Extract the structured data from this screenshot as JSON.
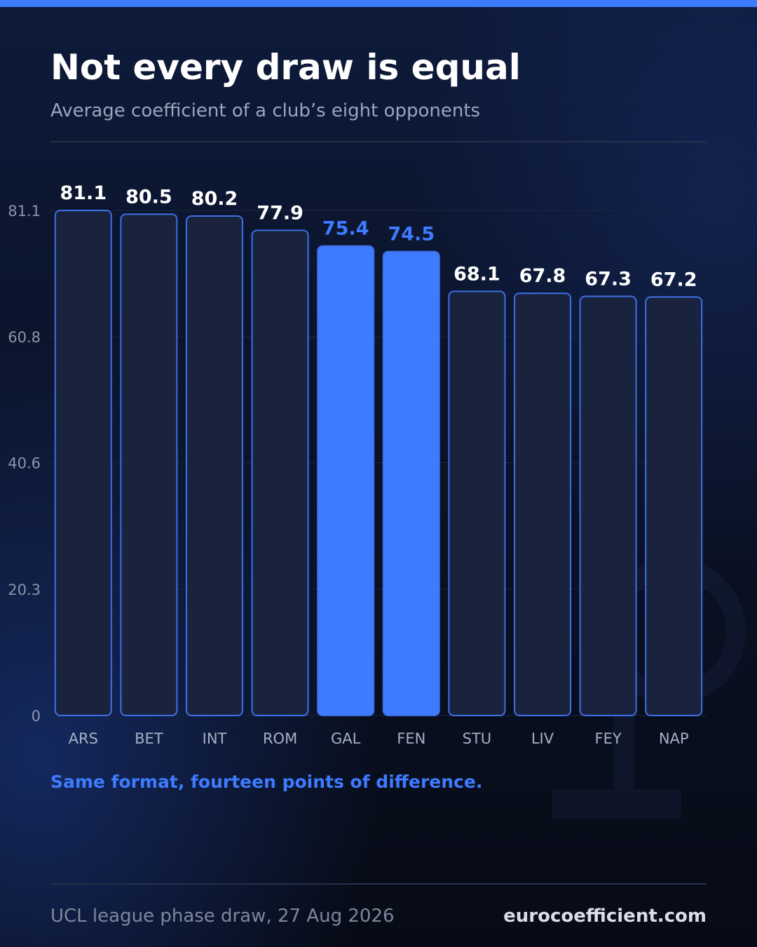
{
  "chart_data": {
    "type": "bar",
    "title": "Not every draw is equal",
    "subtitle": "Average coefficient of a club’s eight opponents",
    "categories": [
      "ARS",
      "BET",
      "INT",
      "ROM",
      "GAL",
      "FEN",
      "STU",
      "LIV",
      "FEY",
      "NAP"
    ],
    "values": [
      81.1,
      80.5,
      80.2,
      77.9,
      75.4,
      74.5,
      68.1,
      67.8,
      67.3,
      67.2
    ],
    "colors": [
      "#19233d",
      "#19233d",
      "#19233d",
      "#19233d",
      "#3d7bff",
      "#3d7bff",
      "#19233d",
      "#19233d",
      "#19233d",
      "#19233d"
    ],
    "label_colors": [
      "#ffffff",
      "#ffffff",
      "#ffffff",
      "#ffffff",
      "#3d7bff",
      "#3d7bff",
      "#ffffff",
      "#ffffff",
      "#ffffff",
      "#ffffff"
    ],
    "bar_stroke": "#3f6fe6",
    "ylim": [
      0,
      81.1
    ],
    "yticks": [
      0,
      20.3,
      40.6,
      60.8,
      81.1
    ],
    "grid": true,
    "annotation": "Same format, fourteen points of difference.",
    "footer_note": "UCL league phase draw, 27 Aug 2026",
    "footer_brand": "eurocoefficient.com"
  }
}
